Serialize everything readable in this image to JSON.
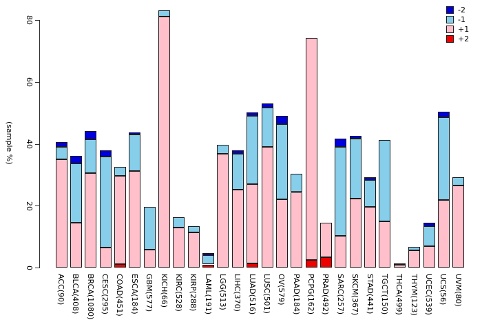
{
  "ylabel": "(sample %)",
  "chart_data": {
    "type": "bar",
    "stacked": true,
    "title": "",
    "xlabel": "",
    "ylabel": "(sample %)",
    "ylim": [
      0,
      80
    ],
    "yticks": [
      0,
      20,
      40,
      60,
      80
    ],
    "grid": false,
    "legend_position": "top-right",
    "categories": [
      "ACC(90)",
      "BLCA(408)",
      "BRCA(1080)",
      "CESC(295)",
      "COAD(451)",
      "ESCA(184)",
      "GBM(577)",
      "KICH(66)",
      "KIRC(528)",
      "KIRP(288)",
      "LAML(191)",
      "LGG(513)",
      "LIHC(370)",
      "LUAD(516)",
      "LUSC(501)",
      "OV(579)",
      "PAAD(184)",
      "PCPG(162)",
      "PRAD(492)",
      "SARC(257)",
      "SKCM(367)",
      "STAD(441)",
      "TGCT(150)",
      "THCA(499)",
      "THYM(123)",
      "UCEC(539)",
      "UCS(56)",
      "UVM(80)"
    ],
    "series": [
      {
        "name": "-2",
        "color": "#0000DC",
        "values": [
          1.6,
          2.4,
          2.6,
          2.0,
          0,
          0.7,
          0,
          0,
          0,
          0,
          0.7,
          0,
          1.1,
          1.1,
          1.5,
          2.6,
          0,
          0,
          0,
          2.8,
          0.9,
          0.8,
          0,
          0,
          0,
          1.1,
          1.8,
          0
        ]
      },
      {
        "name": "-1",
        "color": "#87CEEB",
        "values": [
          4.0,
          19.2,
          11.0,
          29.3,
          2.8,
          11.9,
          13.8,
          2.0,
          3.3,
          1.9,
          2.9,
          2.8,
          11.5,
          22.2,
          12.5,
          24.4,
          5.9,
          0,
          0,
          28.7,
          19.5,
          8.7,
          26.3,
          0.4,
          1.1,
          6.5,
          26.7,
          2.7
        ]
      },
      {
        "name": "+1",
        "color": "#FFC0CB",
        "values": [
          35.0,
          14.4,
          30.5,
          6.5,
          28.6,
          31.1,
          5.8,
          81.1,
          12.9,
          11.4,
          0,
          36.8,
          25.2,
          25.6,
          39.1,
          22.0,
          24.4,
          71.8,
          11.1,
          10.2,
          22.2,
          19.6,
          15.0,
          1.0,
          5.5,
          6.8,
          21.8,
          26.5
        ]
      },
      {
        "name": "+2",
        "color": "#EE0000",
        "values": [
          0,
          0,
          0,
          0,
          1.1,
          0,
          0,
          0,
          0,
          0,
          1.0,
          0,
          0,
          1.3,
          0,
          0,
          0,
          2.4,
          3.3,
          0,
          0,
          0,
          0,
          0,
          0,
          0,
          0,
          0
        ]
      }
    ],
    "stack_order_bottom_to_top": [
      "+2",
      "+1",
      "-1",
      "-2"
    ],
    "legend": [
      "-2",
      "-1",
      "+1",
      "+2"
    ]
  }
}
